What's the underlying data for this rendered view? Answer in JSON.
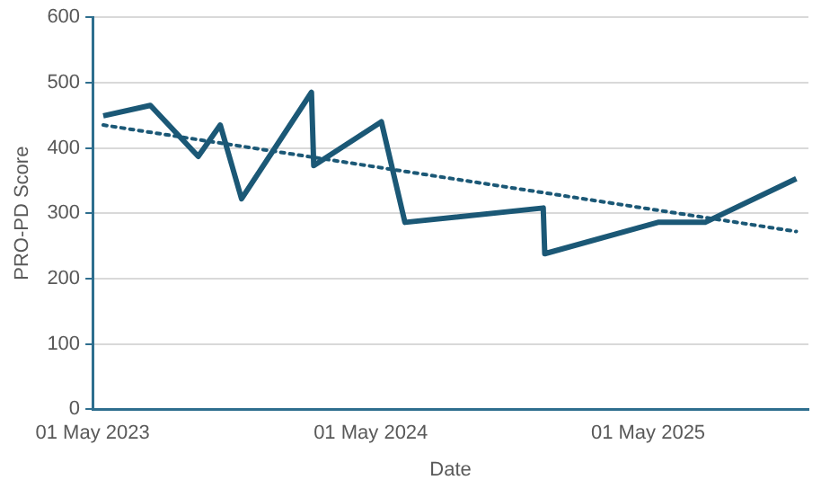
{
  "chart_data": {
    "type": "line",
    "xlabel": "Date",
    "ylabel": "PRO-PD Score",
    "x": [
      "2023-05-15",
      "2023-07-16",
      "2023-09-17",
      "2023-10-16",
      "2023-11-13",
      "2024-02-13",
      "2024-02-16",
      "2024-05-15",
      "2024-06-15",
      "2024-12-14",
      "2024-12-16",
      "2025-05-14",
      "2025-07-15",
      "2025-11-12"
    ],
    "series": [
      {
        "color": "#1b5876",
        "values": [
          449,
          465,
          387,
          435,
          322,
          485,
          373,
          440,
          286,
          308,
          238,
          286,
          286,
          353
        ]
      },
      {
        "type": "line",
        "x": [
          "2023-05-15",
          "2025-11-12"
        ],
        "color": "#1b5876",
        "line_style": "dotted",
        "values": [
          435,
          272
        ]
      }
    ],
    "xlim": [
      "2023-05-01",
      "2025-11-28"
    ],
    "xticks": [
      {
        "value": "2023-05-01",
        "label": "01 May 2023"
      },
      {
        "value": "2024-05-01",
        "label": "01 May 2024"
      },
      {
        "value": "2025-05-01",
        "label": "01 May 2025"
      }
    ],
    "ylim": [
      0,
      600
    ],
    "yticks": [
      0,
      100,
      200,
      300,
      400,
      500,
      600
    ],
    "grid": "y",
    "legend": false
  }
}
